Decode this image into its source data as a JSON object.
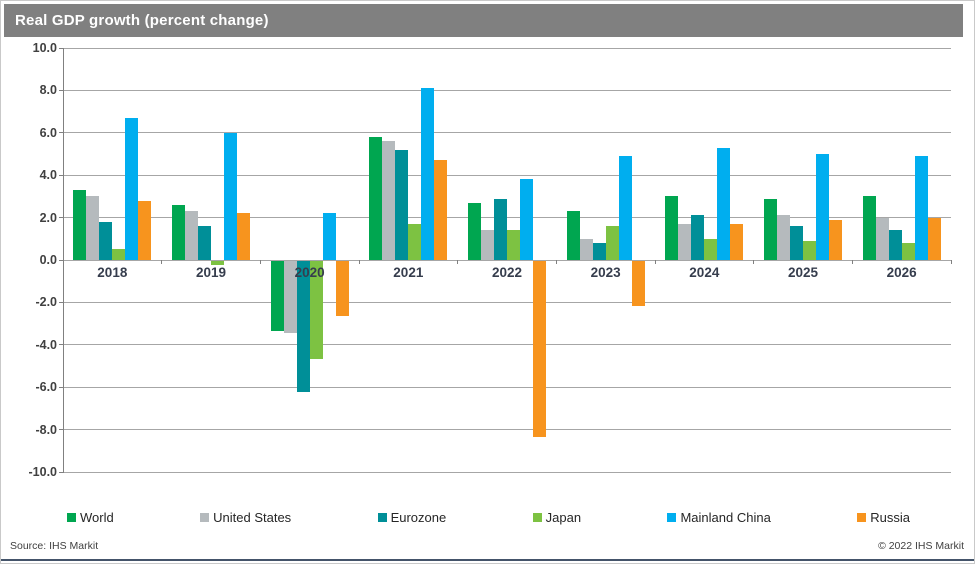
{
  "header": {
    "title": "Real GDP growth (percent change)"
  },
  "footer": {
    "source": "Source:  IHS Markit",
    "copyright": "© 2022  IHS Markit"
  },
  "colors": {
    "title_bar": "#808080",
    "gridline": "#a6a6a6",
    "axis": "#808080",
    "world_green": "#00A650",
    "us_gray": "#B5BABD",
    "eurozone_teal": "#008F98",
    "japan_green": "#7DC242",
    "china_cyan": "#00AEEF",
    "russia_orange": "#F7941E"
  },
  "chart_data": {
    "type": "bar",
    "title": "Real GDP growth (percent change)",
    "categories": [
      "2018",
      "2019",
      "2020",
      "2021",
      "2022",
      "2023",
      "2024",
      "2025",
      "2026"
    ],
    "series": [
      {
        "name": "World",
        "color": "#00A650",
        "values": [
          3.3,
          2.6,
          -3.3,
          5.8,
          2.7,
          2.3,
          3.0,
          2.9,
          3.0
        ]
      },
      {
        "name": "United States",
        "color": "#B5BABD",
        "values": [
          3.0,
          2.3,
          -3.4,
          5.6,
          1.4,
          1.0,
          1.7,
          2.1,
          2.0
        ]
      },
      {
        "name": "Eurozone",
        "color": "#008F98",
        "values": [
          1.8,
          1.6,
          -6.2,
          5.2,
          2.9,
          0.8,
          2.1,
          1.6,
          1.4
        ]
      },
      {
        "name": "Japan",
        "color": "#7DC242",
        "values": [
          0.5,
          -0.2,
          -4.6,
          1.7,
          1.4,
          1.6,
          1.0,
          0.9,
          0.8
        ]
      },
      {
        "name": "Mainland China",
        "color": "#00AEEF",
        "values": [
          6.7,
          6.0,
          2.2,
          8.1,
          3.8,
          4.9,
          5.3,
          5.0,
          4.9
        ]
      },
      {
        "name": "Russia",
        "color": "#F7941E",
        "values": [
          2.8,
          2.2,
          -2.6,
          4.7,
          -8.3,
          -2.1,
          1.7,
          1.9,
          2.0
        ]
      }
    ],
    "ylim": [
      -10.0,
      10.0
    ],
    "ytick_step": 2.0,
    "ytick_labels": [
      "10.0",
      "8.0",
      "6.0",
      "4.0",
      "2.0",
      "0.0",
      "-2.0",
      "-4.0",
      "-6.0",
      "-8.0",
      "-10.0"
    ],
    "xlabel": "",
    "ylabel": "",
    "grid": true,
    "legend_position": "bottom"
  }
}
